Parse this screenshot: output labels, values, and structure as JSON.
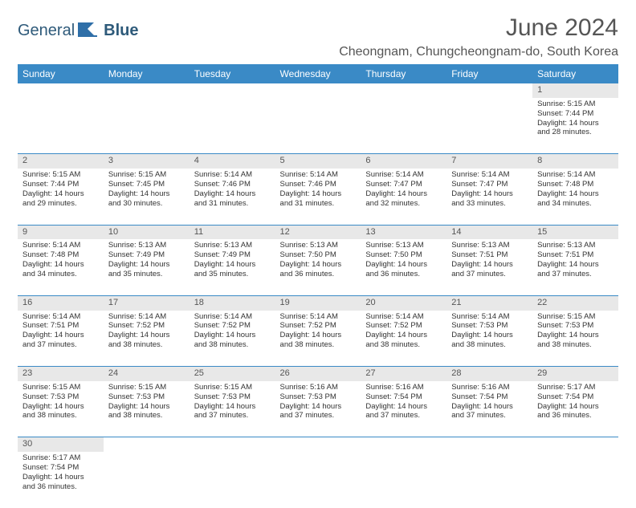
{
  "logo": {
    "word1": "General",
    "word2": "Blue"
  },
  "title": "June 2024",
  "location": "Cheongnam, Chungcheongnam-do, South Korea",
  "colors": {
    "header_bg": "#3a8ac6",
    "header_fg": "#ffffff",
    "daynum_bg": "#e8e8e8",
    "border": "#3a8ac6",
    "title_color": "#555555",
    "logo_color": "#2e5a7a"
  },
  "fonts": {
    "title_size": 30,
    "location_size": 16,
    "header_size": 12,
    "cell_size": 9.5,
    "daynum_size": 11
  },
  "day_headers": [
    "Sunday",
    "Monday",
    "Tuesday",
    "Wednesday",
    "Thursday",
    "Friday",
    "Saturday"
  ],
  "weeks": [
    [
      null,
      null,
      null,
      null,
      null,
      null,
      {
        "n": "1",
        "sr": "Sunrise: 5:15 AM",
        "ss": "Sunset: 7:44 PM",
        "d1": "Daylight: 14 hours",
        "d2": "and 28 minutes."
      }
    ],
    [
      {
        "n": "2",
        "sr": "Sunrise: 5:15 AM",
        "ss": "Sunset: 7:44 PM",
        "d1": "Daylight: 14 hours",
        "d2": "and 29 minutes."
      },
      {
        "n": "3",
        "sr": "Sunrise: 5:15 AM",
        "ss": "Sunset: 7:45 PM",
        "d1": "Daylight: 14 hours",
        "d2": "and 30 minutes."
      },
      {
        "n": "4",
        "sr": "Sunrise: 5:14 AM",
        "ss": "Sunset: 7:46 PM",
        "d1": "Daylight: 14 hours",
        "d2": "and 31 minutes."
      },
      {
        "n": "5",
        "sr": "Sunrise: 5:14 AM",
        "ss": "Sunset: 7:46 PM",
        "d1": "Daylight: 14 hours",
        "d2": "and 31 minutes."
      },
      {
        "n": "6",
        "sr": "Sunrise: 5:14 AM",
        "ss": "Sunset: 7:47 PM",
        "d1": "Daylight: 14 hours",
        "d2": "and 32 minutes."
      },
      {
        "n": "7",
        "sr": "Sunrise: 5:14 AM",
        "ss": "Sunset: 7:47 PM",
        "d1": "Daylight: 14 hours",
        "d2": "and 33 minutes."
      },
      {
        "n": "8",
        "sr": "Sunrise: 5:14 AM",
        "ss": "Sunset: 7:48 PM",
        "d1": "Daylight: 14 hours",
        "d2": "and 34 minutes."
      }
    ],
    [
      {
        "n": "9",
        "sr": "Sunrise: 5:14 AM",
        "ss": "Sunset: 7:48 PM",
        "d1": "Daylight: 14 hours",
        "d2": "and 34 minutes."
      },
      {
        "n": "10",
        "sr": "Sunrise: 5:13 AM",
        "ss": "Sunset: 7:49 PM",
        "d1": "Daylight: 14 hours",
        "d2": "and 35 minutes."
      },
      {
        "n": "11",
        "sr": "Sunrise: 5:13 AM",
        "ss": "Sunset: 7:49 PM",
        "d1": "Daylight: 14 hours",
        "d2": "and 35 minutes."
      },
      {
        "n": "12",
        "sr": "Sunrise: 5:13 AM",
        "ss": "Sunset: 7:50 PM",
        "d1": "Daylight: 14 hours",
        "d2": "and 36 minutes."
      },
      {
        "n": "13",
        "sr": "Sunrise: 5:13 AM",
        "ss": "Sunset: 7:50 PM",
        "d1": "Daylight: 14 hours",
        "d2": "and 36 minutes."
      },
      {
        "n": "14",
        "sr": "Sunrise: 5:13 AM",
        "ss": "Sunset: 7:51 PM",
        "d1": "Daylight: 14 hours",
        "d2": "and 37 minutes."
      },
      {
        "n": "15",
        "sr": "Sunrise: 5:13 AM",
        "ss": "Sunset: 7:51 PM",
        "d1": "Daylight: 14 hours",
        "d2": "and 37 minutes."
      }
    ],
    [
      {
        "n": "16",
        "sr": "Sunrise: 5:14 AM",
        "ss": "Sunset: 7:51 PM",
        "d1": "Daylight: 14 hours",
        "d2": "and 37 minutes."
      },
      {
        "n": "17",
        "sr": "Sunrise: 5:14 AM",
        "ss": "Sunset: 7:52 PM",
        "d1": "Daylight: 14 hours",
        "d2": "and 38 minutes."
      },
      {
        "n": "18",
        "sr": "Sunrise: 5:14 AM",
        "ss": "Sunset: 7:52 PM",
        "d1": "Daylight: 14 hours",
        "d2": "and 38 minutes."
      },
      {
        "n": "19",
        "sr": "Sunrise: 5:14 AM",
        "ss": "Sunset: 7:52 PM",
        "d1": "Daylight: 14 hours",
        "d2": "and 38 minutes."
      },
      {
        "n": "20",
        "sr": "Sunrise: 5:14 AM",
        "ss": "Sunset: 7:52 PM",
        "d1": "Daylight: 14 hours",
        "d2": "and 38 minutes."
      },
      {
        "n": "21",
        "sr": "Sunrise: 5:14 AM",
        "ss": "Sunset: 7:53 PM",
        "d1": "Daylight: 14 hours",
        "d2": "and 38 minutes."
      },
      {
        "n": "22",
        "sr": "Sunrise: 5:15 AM",
        "ss": "Sunset: 7:53 PM",
        "d1": "Daylight: 14 hours",
        "d2": "and 38 minutes."
      }
    ],
    [
      {
        "n": "23",
        "sr": "Sunrise: 5:15 AM",
        "ss": "Sunset: 7:53 PM",
        "d1": "Daylight: 14 hours",
        "d2": "and 38 minutes."
      },
      {
        "n": "24",
        "sr": "Sunrise: 5:15 AM",
        "ss": "Sunset: 7:53 PM",
        "d1": "Daylight: 14 hours",
        "d2": "and 38 minutes."
      },
      {
        "n": "25",
        "sr": "Sunrise: 5:15 AM",
        "ss": "Sunset: 7:53 PM",
        "d1": "Daylight: 14 hours",
        "d2": "and 37 minutes."
      },
      {
        "n": "26",
        "sr": "Sunrise: 5:16 AM",
        "ss": "Sunset: 7:53 PM",
        "d1": "Daylight: 14 hours",
        "d2": "and 37 minutes."
      },
      {
        "n": "27",
        "sr": "Sunrise: 5:16 AM",
        "ss": "Sunset: 7:54 PM",
        "d1": "Daylight: 14 hours",
        "d2": "and 37 minutes."
      },
      {
        "n": "28",
        "sr": "Sunrise: 5:16 AM",
        "ss": "Sunset: 7:54 PM",
        "d1": "Daylight: 14 hours",
        "d2": "and 37 minutes."
      },
      {
        "n": "29",
        "sr": "Sunrise: 5:17 AM",
        "ss": "Sunset: 7:54 PM",
        "d1": "Daylight: 14 hours",
        "d2": "and 36 minutes."
      }
    ],
    [
      {
        "n": "30",
        "sr": "Sunrise: 5:17 AM",
        "ss": "Sunset: 7:54 PM",
        "d1": "Daylight: 14 hours",
        "d2": "and 36 minutes."
      },
      null,
      null,
      null,
      null,
      null,
      null
    ]
  ]
}
